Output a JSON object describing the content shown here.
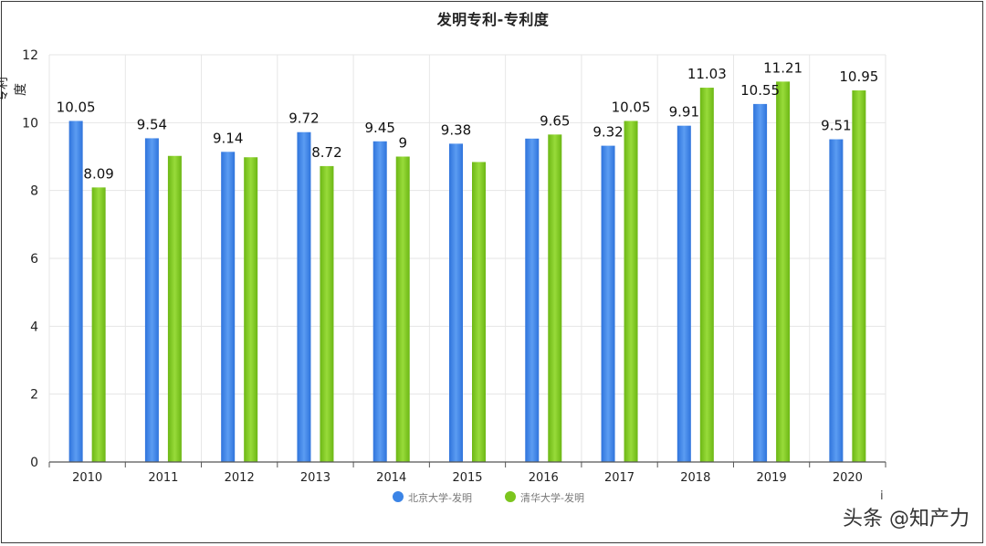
{
  "chart_data": {
    "type": "bar",
    "title": "发明专利-专利度",
    "ylabel": "专利度",
    "xlabel": "",
    "ylim": [
      0,
      12
    ],
    "yticks": [
      0,
      2,
      4,
      6,
      8,
      10,
      12
    ],
    "grid": true,
    "legend_position": "bottom",
    "categories": [
      "2010",
      "2011",
      "2012",
      "2013",
      "2014",
      "2015",
      "2016",
      "2017",
      "2018",
      "2019",
      "2020"
    ],
    "series": [
      {
        "name": "北京大学-发明",
        "color": "#3b84e6",
        "values": [
          10.05,
          9.54,
          9.14,
          9.72,
          9.45,
          9.38,
          9.53,
          9.32,
          9.91,
          10.55,
          9.51
        ],
        "labels": [
          "10.05",
          "9.54",
          "9.14",
          "9.72",
          "9.45",
          "9.38",
          "",
          "9.32",
          "9.91",
          "10.55",
          "9.51"
        ]
      },
      {
        "name": "清华大学-发明",
        "color": "#7cc51e",
        "values": [
          8.09,
          9.02,
          8.98,
          8.72,
          9.0,
          8.84,
          9.65,
          10.05,
          11.03,
          11.21,
          10.95
        ],
        "labels": [
          "8.09",
          "",
          "",
          "8.72",
          "9",
          "",
          "9.65",
          "10.05",
          "11.03",
          "11.21",
          "10.95"
        ]
      }
    ]
  },
  "watermark": "头条 @知产力",
  "info_mark": "i"
}
